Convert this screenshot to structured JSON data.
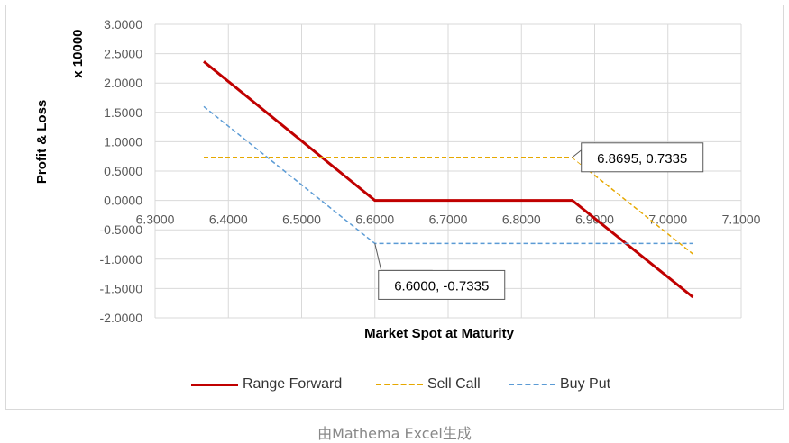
{
  "chart_data": {
    "type": "line",
    "xlabel": "Market Spot at Maturity",
    "ylabel": "Profit & Loss",
    "yunit_label": "x 10000",
    "xlim": [
      6.3,
      7.1
    ],
    "ylim": [
      -2.0,
      3.0
    ],
    "x_ticks": [
      "6.3000",
      "6.4000",
      "6.5000",
      "6.6000",
      "6.7000",
      "6.8000",
      "6.9000",
      "7.0000",
      "7.1000"
    ],
    "x_tick_values": [
      6.3,
      6.4,
      6.5,
      6.6,
      6.7,
      6.8,
      6.9,
      7.0,
      7.1
    ],
    "y_ticks": [
      "3.0000",
      "2.5000",
      "2.0000",
      "1.5000",
      "1.0000",
      "0.5000",
      "0.0000",
      "-0.5000",
      "-1.0000",
      "-1.5000",
      "-2.0000"
    ],
    "y_tick_values": [
      3.0,
      2.5,
      2.0,
      1.5,
      1.0,
      0.5,
      0.0,
      -0.5,
      -1.0,
      -1.5,
      -2.0
    ],
    "grid": true,
    "legend_position": "bottom",
    "series": [
      {
        "name": "Range Forward",
        "color": "#c00000",
        "style": "solid",
        "points": [
          [
            6.3665,
            2.3665
          ],
          [
            6.6,
            0.0
          ],
          [
            6.8695,
            0.0
          ],
          [
            7.034,
            -1.645
          ]
        ]
      },
      {
        "name": "Sell Call",
        "color": "#e6a800",
        "style": "dashed",
        "points": [
          [
            6.3665,
            0.7335
          ],
          [
            6.8695,
            0.7335
          ],
          [
            7.034,
            -0.9115
          ]
        ]
      },
      {
        "name": "Buy Put",
        "color": "#5b9bd5",
        "style": "dashed",
        "points": [
          [
            6.3665,
            1.6
          ],
          [
            6.6,
            -0.7335
          ],
          [
            7.034,
            -0.7335
          ]
        ]
      }
    ],
    "annotations": [
      {
        "label": "6.8695, 0.7335",
        "x": 6.8695,
        "y": 0.7335
      },
      {
        "label": "6.6000, -0.7335",
        "x": 6.6,
        "y": -0.7335
      }
    ]
  },
  "caption": "由Mathema Excel生成"
}
